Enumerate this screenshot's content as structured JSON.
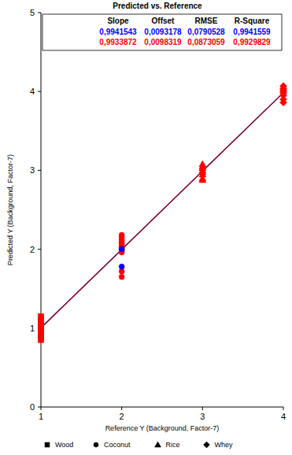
{
  "chart_data": {
    "type": "scatter",
    "title": "Predicted vs. Reference",
    "x_label": "Reference Y (Background, Factor-7)",
    "y_label": "Predicted Y (Background, Factor-7)",
    "xlim": [
      1,
      4
    ],
    "xticks": [
      1,
      2,
      3,
      4
    ],
    "ylim": [
      0,
      5
    ],
    "yticks": [
      0,
      1,
      2,
      3,
      4,
      5
    ],
    "grid": false,
    "legend": "bottom",
    "stats_table": {
      "headers": [
        "Slope",
        "Offset",
        "RMSE",
        "R-Square"
      ],
      "rows": [
        {
          "color": "#0000ff",
          "cells": [
            "0,9941543",
            "0,0093178",
            "0,0790528",
            "0,9941559"
          ]
        },
        {
          "color": "#ff0000",
          "cells": [
            "0,9933872",
            "0,0098319",
            "0,0873059",
            "0,9929829"
          ]
        }
      ]
    },
    "series": [
      {
        "name": "Wood",
        "marker": "square",
        "color": "#ff0000",
        "x": [
          1,
          1,
          1,
          1,
          1,
          1,
          1,
          1,
          1,
          1,
          1,
          1,
          1,
          1
        ],
        "values": [
          0.85,
          0.88,
          0.9,
          0.92,
          0.94,
          0.96,
          0.98,
          1.0,
          1.02,
          1.04,
          1.06,
          1.09,
          1.12,
          1.15
        ],
        "colors": [
          "#ff0000",
          "#ff0000",
          "#ff0000",
          "#ff0000",
          "#ff0000",
          "#ff0000",
          "#ff0000",
          "#ff0000",
          "#ff0000",
          "#ff0000",
          "#ff0000",
          "#ff0000",
          "#ff0000",
          "#ff0000"
        ]
      },
      {
        "name": "Coconut",
        "marker": "circle",
        "color": "#ff0000",
        "x": [
          2,
          2,
          2,
          2,
          2,
          2,
          2,
          2,
          2,
          2,
          2,
          2,
          2,
          2,
          2
        ],
        "values": [
          2.18,
          2.15,
          2.12,
          2.1,
          2.08,
          2.06,
          2.04,
          2.02,
          2.0,
          1.98,
          1.96,
          1.72,
          1.65,
          1.78,
          2.0
        ],
        "colors": [
          "#ff0000",
          "#ff0000",
          "#ff0000",
          "#ff0000",
          "#ff0000",
          "#ff0000",
          "#ff0000",
          "#ff0000",
          "#ff0000",
          "#ff0000",
          "#ff0000",
          "#ff0000",
          "#ff0000",
          "#0000ff",
          "#0000ff"
        ]
      },
      {
        "name": "Rice",
        "marker": "triangle",
        "color": "#ff0000",
        "x": [
          3,
          3,
          3,
          3,
          3,
          3,
          3,
          3
        ],
        "values": [
          3.08,
          3.05,
          3.03,
          3.0,
          2.98,
          2.95,
          2.9,
          2.88
        ],
        "colors": [
          "#ff0000",
          "#ff0000",
          "#ff0000",
          "#ff0000",
          "#ff0000",
          "#ff0000",
          "#ff0000",
          "#ff0000"
        ]
      },
      {
        "name": "Whey",
        "marker": "diamond",
        "color": "#ff0000",
        "x": [
          4,
          4,
          4,
          4,
          4,
          4,
          4,
          4
        ],
        "values": [
          4.07,
          4.04,
          4.02,
          4.0,
          3.98,
          3.95,
          3.9,
          3.86
        ],
        "colors": [
          "#ff0000",
          "#ff0000",
          "#ff0000",
          "#ff0000",
          "#ff0000",
          "#ff0000",
          "#ff0000",
          "#ff0000"
        ]
      },
      {
        "type": "line",
        "color": "#0000ff",
        "x": [
          1,
          4
        ],
        "values": [
          1.0034721,
          3.985935
        ]
      },
      {
        "type": "line",
        "color": "#990000",
        "x": [
          1,
          4
        ],
        "values": [
          1.0032191,
          3.9833807
        ]
      }
    ]
  }
}
